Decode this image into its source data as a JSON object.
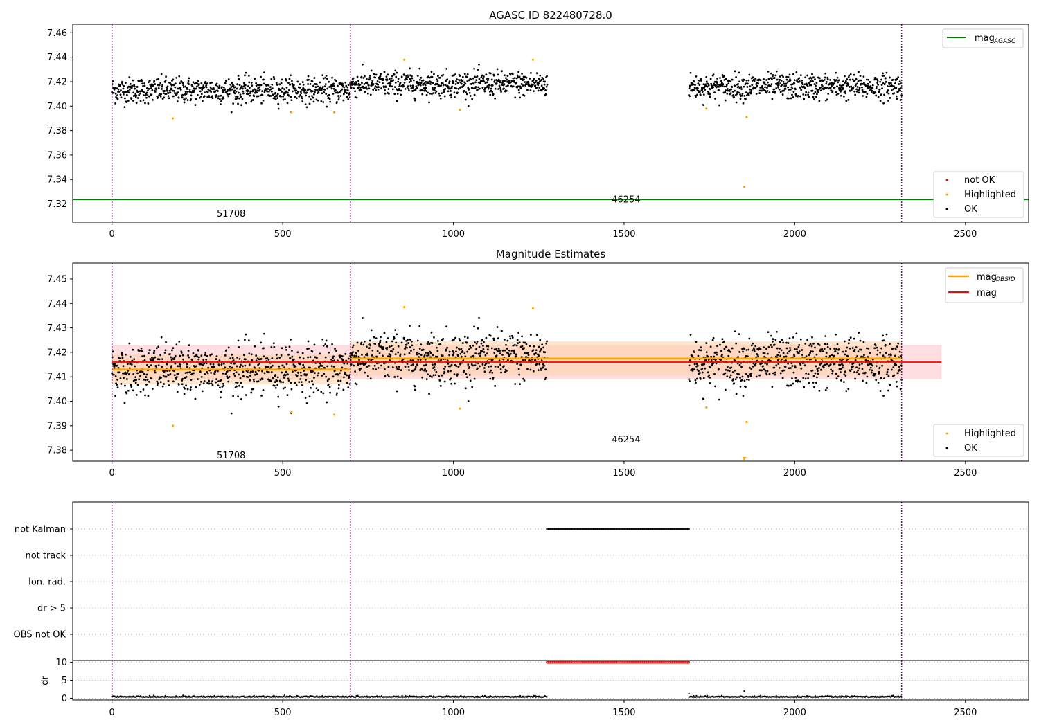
{
  "chart_data": [
    {
      "type": "scatter",
      "title": "AGASC ID 822480728.0",
      "xlim": [
        -115,
        2685
      ],
      "ylim": [
        7.305,
        7.467
      ],
      "xticks": [
        "0",
        "500",
        "1000",
        "1500",
        "2000",
        "2500"
      ],
      "xtick_values": [
        0,
        500,
        1000,
        1500,
        2000,
        2500
      ],
      "yticks": [
        "7.32",
        "7.34",
        "7.36",
        "7.38",
        "7.40",
        "7.42",
        "7.44",
        "7.46"
      ],
      "ytick_values": [
        7.32,
        7.34,
        7.36,
        7.38,
        7.4,
        7.42,
        7.44,
        7.46
      ],
      "vlines": [
        0,
        698,
        2313
      ],
      "mag_agasc": 7.3235,
      "obsid_labels": [
        {
          "text": "51708",
          "x": 349,
          "y": 7.3125
        },
        {
          "text": "46254",
          "x": 1506,
          "y": 7.324
        }
      ],
      "ok_segments": [
        {
          "x_start": 0,
          "x_end": 698,
          "center": 7.413,
          "spread": 0.007
        },
        {
          "x_start": 698,
          "x_end": 1275,
          "center": 7.418,
          "spread": 0.007
        },
        {
          "x_start": 1690,
          "x_end": 2313,
          "center": 7.416,
          "spread": 0.007
        }
      ],
      "highlighted": {
        "x": [
          178,
          526,
          651,
          856,
          1019,
          1233,
          1741,
          1852,
          1859
        ],
        "y": [
          7.39,
          7.395,
          7.395,
          7.438,
          7.397,
          7.438,
          7.398,
          7.334,
          7.391
        ]
      },
      "not_ok": {
        "x": [],
        "y": []
      },
      "legend_top": {
        "label": "mag",
        "sub": "AGASC",
        "color": "#008000"
      },
      "legend_bottom": [
        {
          "label": "not OK",
          "color": "#ff0000"
        },
        {
          "label": "Highlighted",
          "color": "#ffa500"
        },
        {
          "label": "OK",
          "color": "#000000"
        }
      ]
    },
    {
      "type": "scatter",
      "title": "Magnitude Estimates",
      "xlim": [
        -115,
        2685
      ],
      "ylim": [
        7.3755,
        7.4565
      ],
      "xticks": [
        "0",
        "500",
        "1000",
        "1500",
        "2000",
        "2500"
      ],
      "xtick_values": [
        0,
        500,
        1000,
        1500,
        2000,
        2500
      ],
      "yticks": [
        "7.38",
        "7.39",
        "7.40",
        "7.41",
        "7.42",
        "7.43",
        "7.44",
        "7.45"
      ],
      "ytick_values": [
        7.38,
        7.39,
        7.4,
        7.41,
        7.42,
        7.43,
        7.44,
        7.45
      ],
      "vlines": [
        0,
        698,
        2313
      ],
      "mag": 7.416,
      "mag_band": [
        7.409,
        7.423
      ],
      "mag_span": [
        0,
        2430
      ],
      "obsid_mags": [
        {
          "x_start": 0,
          "x_end": 698,
          "mag": 7.413,
          "band": [
            7.407,
            7.419
          ]
        },
        {
          "x_start": 698,
          "x_end": 2313,
          "mag": 7.4175,
          "band": [
            7.4105,
            7.4245
          ]
        }
      ],
      "obsid_labels": [
        {
          "text": "51708",
          "x": 349,
          "y": 7.378
        },
        {
          "text": "46254",
          "x": 1506,
          "y": 7.3845
        }
      ],
      "highlighted": {
        "x": [
          178,
          526,
          651,
          856,
          1019,
          1233,
          1741,
          1859
        ],
        "y": [
          7.39,
          7.3955,
          7.3945,
          7.4385,
          7.397,
          7.438,
          7.3975,
          7.3915
        ]
      },
      "offscale_marker": {
        "x": 1852
      },
      "legend_top": [
        {
          "label": "mag",
          "sub": "OBSID",
          "color": "#ffa500"
        },
        {
          "label": "mag",
          "sub": "",
          "color": "#ff0000"
        }
      ],
      "legend_bottom": [
        {
          "label": "Highlighted",
          "color": "#ffa500"
        },
        {
          "label": "OK",
          "color": "#000000"
        }
      ]
    },
    {
      "type": "scatter",
      "title": "",
      "xlim": [
        -115,
        2685
      ],
      "flag_rows": [
        "not Kalman",
        "not track",
        "Ion. rad.",
        "dr > 5",
        "OBS not OK"
      ],
      "flag_segments": [
        {
          "row": "not Kalman",
          "x_start": 1275,
          "x_end": 1690
        }
      ],
      "vlines": [
        0,
        698,
        2313
      ]
    },
    {
      "type": "scatter",
      "title": "",
      "ylabel": "dr",
      "xlim": [
        -115,
        2685
      ],
      "ylim": [
        -0.5,
        10.5
      ],
      "xticks": [
        "0",
        "500",
        "1000",
        "1500",
        "2000",
        "2500"
      ],
      "xtick_values": [
        0,
        500,
        1000,
        1500,
        2000,
        2500
      ],
      "yticks": [
        "0",
        "5",
        "10"
      ],
      "ytick_values": [
        0,
        5,
        10
      ],
      "vlines": [
        0,
        698,
        2313
      ],
      "baseline": [
        {
          "x_start": 0,
          "x_end": 1275,
          "value": 0.3
        },
        {
          "x_start": 1690,
          "x_end": 2313,
          "value": 0.3
        }
      ],
      "clipped": {
        "x_start": 1275,
        "x_end": 1690,
        "value": 10,
        "color": "#ff0000"
      },
      "outliers": {
        "x": [
          1690,
          1852
        ],
        "y": [
          1.3,
          2.0
        ]
      }
    }
  ],
  "colors": {
    "ok": "#000000",
    "highlighted": "#ffa500",
    "not_ok": "#ff0000",
    "agasc": "#008000",
    "mag": "#ff0000",
    "mag_obsid": "#ffa500",
    "vline": "#800080",
    "mag_band": "#ffc8cd",
    "obsid_band": "#ffd2a6"
  }
}
